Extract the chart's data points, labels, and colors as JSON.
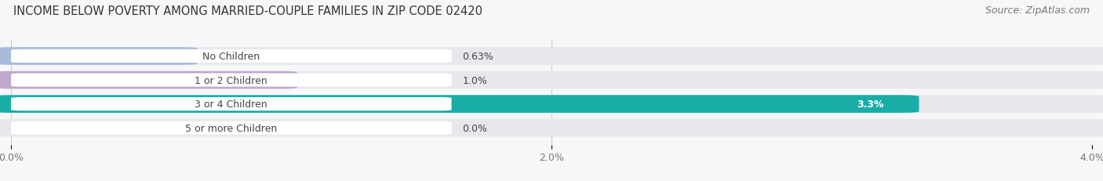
{
  "title": "INCOME BELOW POVERTY AMONG MARRIED-COUPLE FAMILIES IN ZIP CODE 02420",
  "source": "Source: ZipAtlas.com",
  "categories": [
    "No Children",
    "1 or 2 Children",
    "3 or 4 Children",
    "5 or more Children"
  ],
  "values": [
    0.63,
    1.0,
    3.3,
    0.0
  ],
  "labels": [
    "0.63%",
    "1.0%",
    "3.3%",
    "0.0%"
  ],
  "bar_colors": [
    "#a8bcd8",
    "#c0a8cc",
    "#1aada8",
    "#b0b8e8"
  ],
  "bar_bg_color": "#e8e8ec",
  "xlim": [
    0,
    4.0
  ],
  "xticks": [
    0.0,
    2.0,
    4.0
  ],
  "xticklabels": [
    "0.0%",
    "2.0%",
    "4.0%"
  ],
  "title_fontsize": 10.5,
  "source_fontsize": 9,
  "label_fontsize": 9,
  "value_fontsize": 9,
  "bar_height": 0.62,
  "background_color": "#f7f7f9"
}
